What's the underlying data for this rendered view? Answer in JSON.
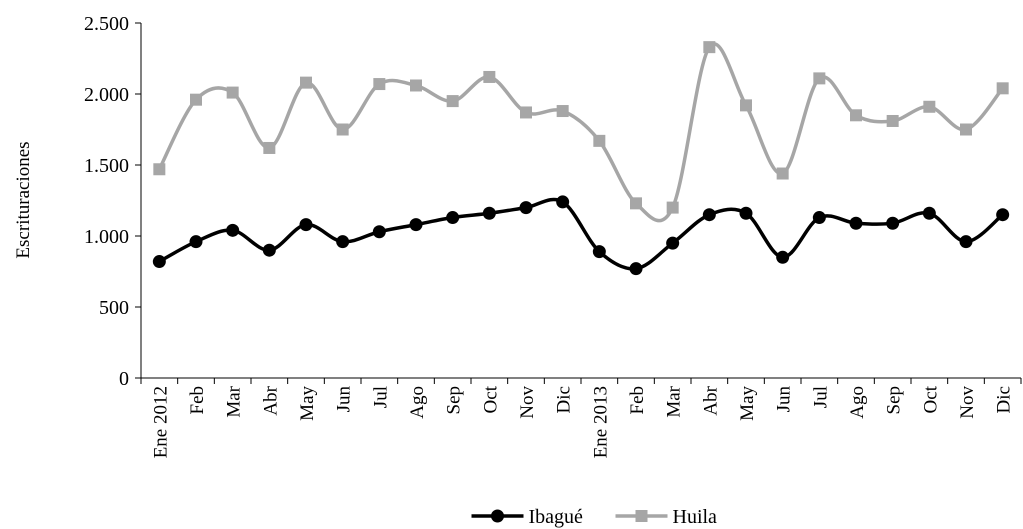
{
  "chart_data": {
    "type": "line",
    "y_label": "Escrituraciones",
    "categories": [
      "Ene 2012",
      "Feb",
      "Mar",
      "Abr",
      "May",
      "Jun",
      "Jul",
      "Ago",
      "Sep",
      "Oct",
      "Nov",
      "Dic",
      "Ene 2013",
      "Feb",
      "Mar",
      "Abr",
      "May",
      "Jun",
      "Jul",
      "Ago",
      "Sep",
      "Oct",
      "Nov",
      "Dic"
    ],
    "series": [
      {
        "name": "Ibagué",
        "color": "#000000",
        "marker": "circle",
        "values": [
          820,
          960,
          1040,
          900,
          1080,
          960,
          1030,
          1080,
          1130,
          1160,
          1200,
          1240,
          890,
          770,
          950,
          1150,
          1160,
          850,
          1130,
          1090,
          1090,
          1160,
          960,
          1150
        ]
      },
      {
        "name": "Huila",
        "color": "#a6a6a6",
        "marker": "square",
        "values": [
          1470,
          1960,
          2010,
          1620,
          2080,
          1750,
          2070,
          2060,
          1950,
          2120,
          1870,
          1880,
          1670,
          1230,
          1200,
          2330,
          1920,
          1440,
          2110,
          1850,
          1810,
          1910,
          1750,
          2040
        ]
      }
    ],
    "ylim": [
      0,
      2500
    ],
    "yticks": [
      0,
      500,
      {
        "value": 1000,
        "label": "1.000"
      },
      {
        "value": 1500,
        "label": "1.500"
      },
      {
        "value": 2000,
        "label": "2.000"
      },
      {
        "value": 2500,
        "label": "2.500"
      }
    ],
    "smooth": true,
    "legend": "bottom"
  }
}
